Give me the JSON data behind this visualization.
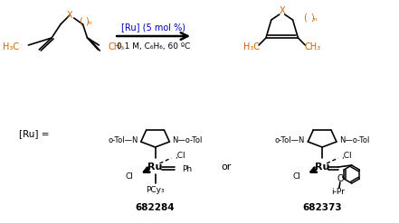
{
  "background_color": "#ffffff",
  "figsize": [
    4.41,
    2.47
  ],
  "dpi": 100,
  "text_color": "#000000",
  "blue_color": "#0000bb",
  "orange_color": "#cc6600",
  "reaction_line1": "[Ru] (5 mol %)",
  "reaction_line2": "0.1 M, C₆H₆, 60 ºC",
  "catalyst_label": "[Ru] =",
  "compound1_num": "682284",
  "compound2_num": "682373",
  "or_text": "or"
}
